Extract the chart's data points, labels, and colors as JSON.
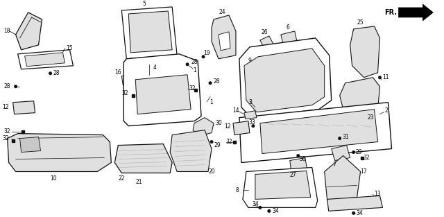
{
  "figsize": [
    6.4,
    3.13
  ],
  "dpi": 100,
  "bg": "#ffffff",
  "lc": "#111111",
  "gray1": "#c8c8c8",
  "gray2": "#e0e0e0",
  "gray3": "#b0b0b0"
}
